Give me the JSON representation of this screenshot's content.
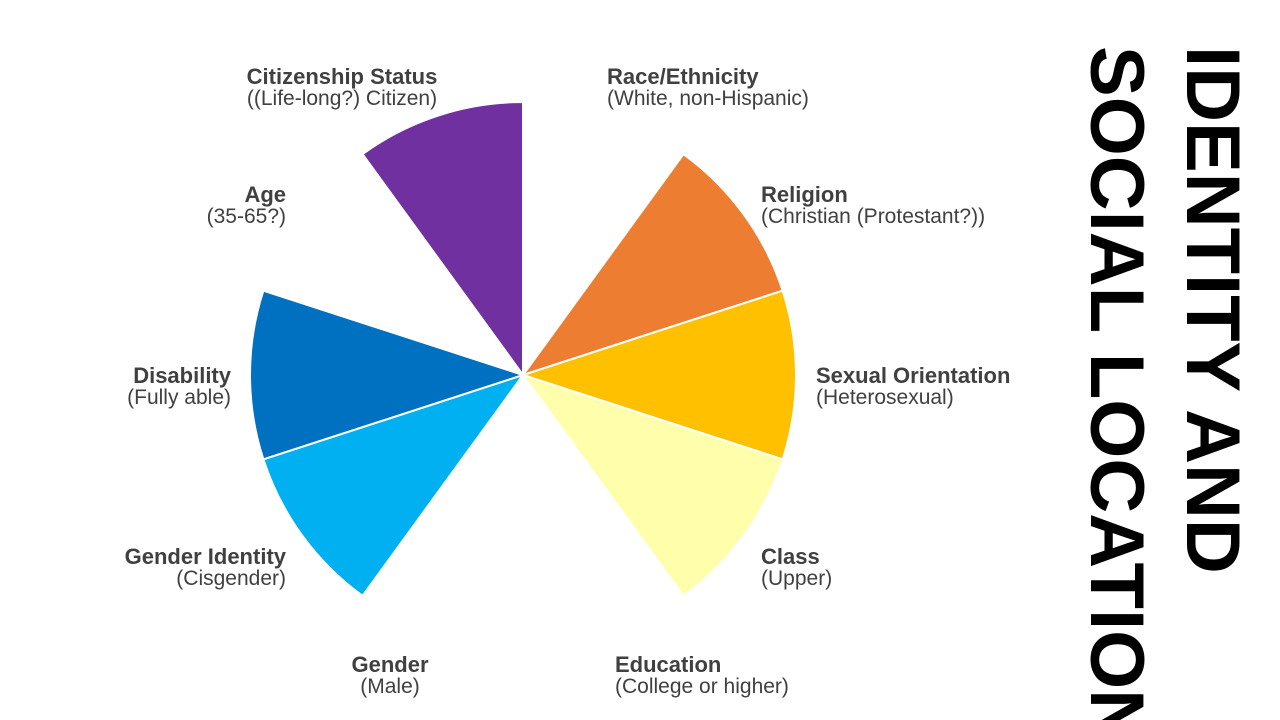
{
  "title_lines": [
    "IDENTITY AND",
    "SOCIAL LOCATION"
  ],
  "segments": [
    {
      "id": "race",
      "title": "Race/Ethnicity",
      "subtitle": "(White, non-Hispanic)",
      "color": "",
      "angle": 0
    },
    {
      "id": "religion",
      "title": "Religion",
      "subtitle": "(Christian (Protestant?))",
      "color": "#ED7D31",
      "angle": 36
    },
    {
      "id": "sexual-orientation",
      "title": "Sexual Orientation",
      "subtitle": "(Heterosexual)",
      "color": "#FFC000",
      "angle": 72
    },
    {
      "id": "class",
      "title": "Class",
      "subtitle": "(Upper)",
      "color": "#FFFFAB",
      "angle": 108
    },
    {
      "id": "education",
      "title": "Education",
      "subtitle": "(College or higher)",
      "color": "",
      "angle": 144
    },
    {
      "id": "gender",
      "title": "Gender",
      "subtitle": "(Male)",
      "color": "",
      "angle": 180
    },
    {
      "id": "gender-identity",
      "title": "Gender Identity",
      "subtitle": "(Cisgender)",
      "color": "#00B0F0",
      "angle": 216
    },
    {
      "id": "disability",
      "title": "Disability",
      "subtitle": "(Fully able)",
      "color": "#0070C0",
      "angle": 252
    },
    {
      "id": "age",
      "title": "Age",
      "subtitle": "(35-65?)",
      "color": "",
      "angle": 288
    },
    {
      "id": "citizenship",
      "title": "Citizenship Status",
      "subtitle": "((Life-long?) Citizen)",
      "color": "#7030A0",
      "angle": 324
    }
  ]
}
